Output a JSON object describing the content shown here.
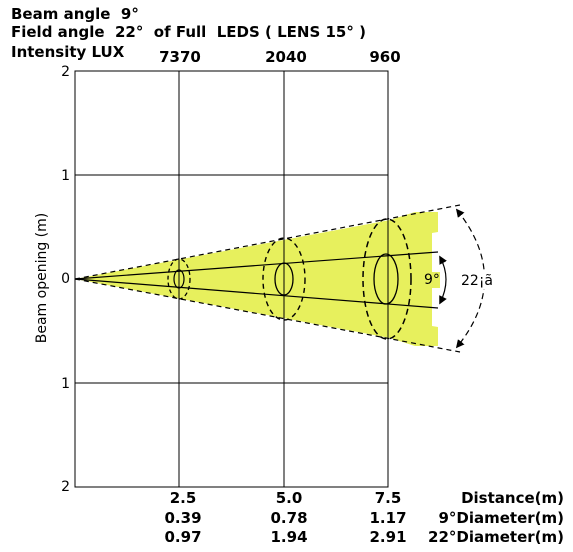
{
  "header": {
    "beam_angle": "Beam angle  9°",
    "field_angle": "Field angle  22°  of Full  LEDS ( LENS 15° )",
    "intensity_label": "Intensity LUX"
  },
  "lux_values": [
    "7370",
    "2040",
    "960"
  ],
  "y_axis": {
    "label": "Beam opening (m)",
    "ticks": [
      "2",
      "1",
      "0",
      "1",
      "2"
    ]
  },
  "beam_angle_label": "9°",
  "field_angle_label": "22¡ã",
  "table": {
    "distances": [
      "2.5",
      "5.0",
      "7.5"
    ],
    "diam_9": [
      "0.39",
      "0.78",
      "1.17"
    ],
    "diam_22": [
      "0.97",
      "1.94",
      "2.91"
    ],
    "row_labels": {
      "distance": "Distance(m)",
      "diam_9": "9°Diameter(m)",
      "diam_22": "22°Diameter(m)"
    }
  },
  "colors": {
    "field_fill": "#e7f05d",
    "lines": "#000000"
  }
}
